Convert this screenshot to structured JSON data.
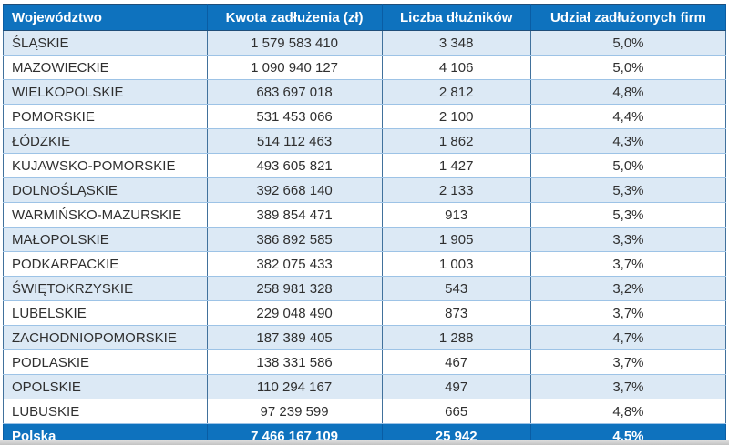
{
  "colors": {
    "header_bg": "#0E72BE",
    "footer_bg": "#0E72BE",
    "alt_row_bg": "#DCE9F5",
    "row_bg": "#FFFFFF",
    "outer_border": "#1F4E79",
    "vertical_border": "#41719C",
    "horizontal_border": "#9DC3E6",
    "header_text": "#FFFFFF",
    "body_text": "#2F2F2F"
  },
  "table": {
    "headers": [
      "Województwo",
      "Kwota zadłużenia (zł)",
      "Liczba dłużników",
      "Udział zadłużonych firm"
    ],
    "rows": [
      {
        "name": "ŚLĄSKIE",
        "amount": "1 579 583 410",
        "debtors": "3 348",
        "share": "5,0%"
      },
      {
        "name": "MAZOWIECKIE",
        "amount": "1 090 940 127",
        "debtors": "4 106",
        "share": "5,0%"
      },
      {
        "name": "WIELKOPOLSKIE",
        "amount": "683 697 018",
        "debtors": "2 812",
        "share": "4,8%"
      },
      {
        "name": "POMORSKIE",
        "amount": "531 453 066",
        "debtors": "2 100",
        "share": "4,4%"
      },
      {
        "name": "ŁÓDZKIE",
        "amount": "514 112 463",
        "debtors": "1 862",
        "share": "4,3%"
      },
      {
        "name": "KUJAWSKO-POMORSKIE",
        "amount": "493 605 821",
        "debtors": "1 427",
        "share": "5,0%"
      },
      {
        "name": "DOLNOŚLĄSKIE",
        "amount": "392 668 140",
        "debtors": "2 133",
        "share": "5,3%"
      },
      {
        "name": "WARMIŃSKO-MAZURSKIE",
        "amount": "389 854 471",
        "debtors": "913",
        "share": "5,3%"
      },
      {
        "name": "MAŁOPOLSKIE",
        "amount": "386 892 585",
        "debtors": "1 905",
        "share": "3,3%"
      },
      {
        "name": "PODKARPACKIE",
        "amount": "382 075 433",
        "debtors": "1 003",
        "share": "3,7%"
      },
      {
        "name": "ŚWIĘTOKRZYSKIE",
        "amount": "258 981 328",
        "debtors": "543",
        "share": "3,2%"
      },
      {
        "name": "LUBELSKIE",
        "amount": "229 048 490",
        "debtors": "873",
        "share": "3,7%"
      },
      {
        "name": "ZACHODNIOPOMORSKIE",
        "amount": "187 389 405",
        "debtors": "1 288",
        "share": "4,7%"
      },
      {
        "name": "PODLASKIE",
        "amount": "138 331 586",
        "debtors": "467",
        "share": "3,7%"
      },
      {
        "name": "OPOLSKIE",
        "amount": "110 294 167",
        "debtors": "497",
        "share": "3,7%"
      },
      {
        "name": "LUBUSKIE",
        "amount": "97 239 599",
        "debtors": "665",
        "share": "4,8%"
      }
    ],
    "footer": {
      "name": "Polska",
      "amount": "7 466 167 109",
      "debtors": "25 942",
      "share": "4,5%"
    }
  },
  "chart_data": {
    "type": "table",
    "columns": [
      "Województwo",
      "Kwota zadłużenia (zł)",
      "Liczba dłużników",
      "Udział zadłużonych firm"
    ],
    "rows": [
      [
        "ŚLĄSKIE",
        1579583410,
        3348,
        "5,0%"
      ],
      [
        "MAZOWIECKIE",
        1090940127,
        4106,
        "5,0%"
      ],
      [
        "WIELKOPOLSKIE",
        683697018,
        2812,
        "4,8%"
      ],
      [
        "POMORSKIE",
        531453066,
        2100,
        "4,4%"
      ],
      [
        "ŁÓDZKIE",
        514112463,
        1862,
        "4,3%"
      ],
      [
        "KUJAWSKO-POMORSKIE",
        493605821,
        1427,
        "5,0%"
      ],
      [
        "DOLNOŚLĄSKIE",
        392668140,
        2133,
        "5,3%"
      ],
      [
        "WARMIŃSKO-MAZURSKIE",
        389854471,
        913,
        "5,3%"
      ],
      [
        "MAŁOPOLSKIE",
        386892585,
        1905,
        "3,3%"
      ],
      [
        "PODKARPACKIE",
        382075433,
        1003,
        "3,7%"
      ],
      [
        "ŚWIĘTOKRZYSKIE",
        258981328,
        543,
        "3,2%"
      ],
      [
        "LUBELSKIE",
        229048490,
        873,
        "3,7%"
      ],
      [
        "ZACHODNIOPOMORSKIE",
        187389405,
        1288,
        "4,7%"
      ],
      [
        "PODLASKIE",
        138331586,
        467,
        "3,7%"
      ],
      [
        "OPOLSKIE",
        110294167,
        497,
        "3,7%"
      ],
      [
        "LUBUSKIE",
        97239599,
        665,
        "4,8%"
      ]
    ],
    "footer_row": [
      "Polska",
      7466167109,
      25942,
      "4,5%"
    ],
    "title": "",
    "legend": "none",
    "grid": "on"
  }
}
